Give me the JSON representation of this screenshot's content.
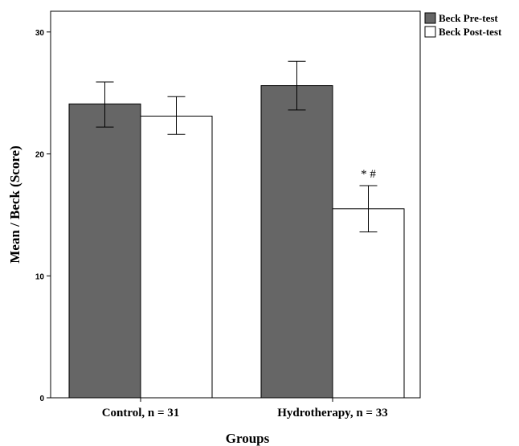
{
  "chart_data": {
    "type": "bar",
    "categories": [
      "Control, n = 31",
      "Hydrotherapy, n = 33"
    ],
    "series": [
      {
        "name": "Beck Pre-test",
        "values": [
          24.1,
          25.6
        ],
        "error_low": [
          22.2,
          23.6
        ],
        "error_high": [
          25.9,
          27.6
        ],
        "color": "#666666"
      },
      {
        "name": "Beck Post-test",
        "values": [
          23.1,
          15.5
        ],
        "error_low": [
          21.6,
          13.6
        ],
        "error_high": [
          24.7,
          17.4
        ],
        "color": "#ffffff"
      }
    ],
    "ylim": [
      0,
      31.7
    ],
    "yticks": [
      "0",
      "10",
      "20",
      "30"
    ],
    "xlabel": "Groups",
    "ylabel": "Mean / Beck (Score)",
    "legend_position": "top-right",
    "grid": false,
    "annotations": [
      {
        "text": "* #",
        "category": "Hydrotherapy, n = 33",
        "series": "Beck Post-test"
      }
    ]
  }
}
